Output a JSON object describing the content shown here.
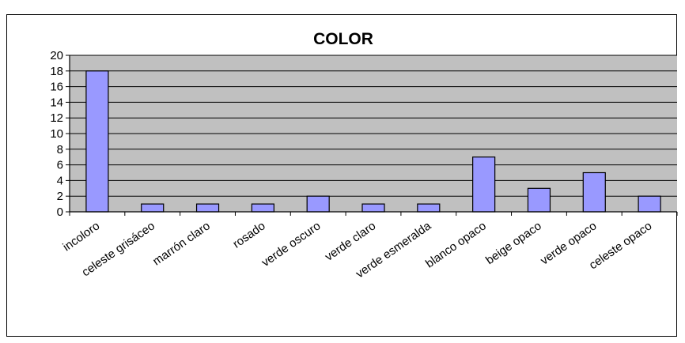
{
  "chart_data": {
    "type": "bar",
    "title": "COLOR",
    "xlabel": "",
    "ylabel": "",
    "ylim": [
      0,
      20
    ],
    "yticks": [
      "0",
      "2",
      "4",
      "6",
      "8",
      "10",
      "12",
      "14",
      "16",
      "18",
      "20"
    ],
    "categories": [
      "incoloro",
      "celeste grisáceo",
      "marrón claro",
      "rosado",
      "verde oscuro",
      "verde claro",
      "verde esmeralda",
      "blanco opaco",
      "beige opaco",
      "verde opaco",
      "celeste opaco"
    ],
    "values": [
      18,
      1,
      1,
      1,
      2,
      1,
      1,
      7,
      3,
      5,
      2
    ],
    "grid": true,
    "legend": "none",
    "colors": {
      "bar": "#9999ff",
      "bar_edge": "#000000",
      "plot_bg": "#c0c0c0",
      "grid": "#000000"
    }
  }
}
